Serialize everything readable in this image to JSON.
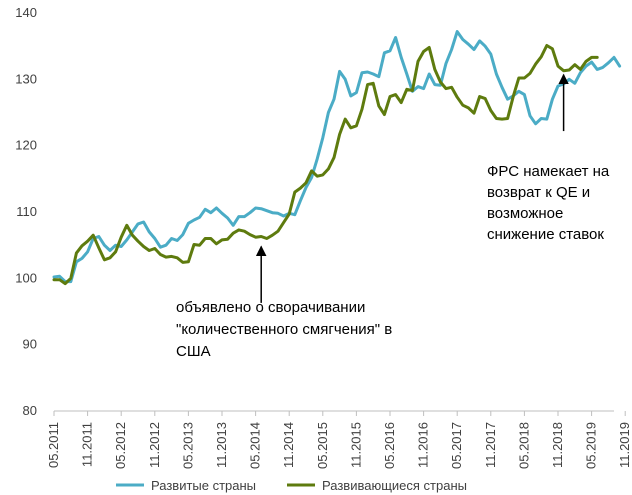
{
  "chart_data": {
    "type": "line",
    "ylim": [
      80,
      140
    ],
    "yticks": [
      80,
      90,
      100,
      110,
      120,
      130,
      140
    ],
    "xticks": [
      "05.2011",
      "11.2011",
      "05.2012",
      "11.2012",
      "05.2013",
      "11.2013",
      "05.2014",
      "11.2014",
      "05.2015",
      "11.2015",
      "05.2016",
      "11.2016",
      "05.2017",
      "11.2017",
      "05.2018",
      "11.2018",
      "05.2019",
      "11.2019"
    ],
    "grid": false,
    "legend_position": "bottom",
    "series": [
      {
        "name": "Развитые страны",
        "color": "#4BACC6",
        "values": [
          100.2,
          100.3,
          99.5,
          99.5,
          102.5,
          103,
          104,
          106,
          106.3,
          105,
          104.2,
          105,
          104.8,
          105.8,
          107,
          108.2,
          108.5,
          107,
          106,
          104.7,
          105,
          106,
          105.7,
          106.6,
          108.3,
          108.8,
          109.2,
          110.4,
          109.9,
          110.6,
          109.8,
          109.1,
          108,
          109.3,
          109.3,
          109.9,
          110.6,
          110.5,
          110.2,
          109.9,
          109.8,
          109.4,
          109.8,
          109.6,
          111.7,
          113.7,
          115.2,
          118,
          121.2,
          125,
          127,
          131.2,
          130,
          127.5,
          128,
          131,
          131.1,
          130.8,
          130.4,
          134,
          134.3,
          136.3,
          133.3,
          130.8,
          128.2,
          128.9,
          128.6,
          130.8,
          129.2,
          129.1,
          132.4,
          134.5,
          137.2,
          136,
          135.3,
          134.5,
          135.8,
          135,
          133.8,
          130.8,
          128.8,
          127,
          127.5,
          128.2,
          127.7,
          124.5,
          123.3,
          124.1,
          124,
          127,
          129,
          129.3,
          130,
          129.4,
          131,
          132,
          132.6,
          131.5,
          131.8,
          132.5,
          133.3,
          132
        ]
      },
      {
        "name": "Развивающиеся страны",
        "color": "#5E7B0E",
        "values": [
          99.8,
          99.8,
          99.2,
          100,
          103.8,
          104.9,
          105.6,
          106.5,
          104.6,
          102.8,
          103.1,
          104,
          106.2,
          108,
          106.5,
          105.6,
          104.8,
          104.2,
          104.5,
          103.6,
          103.2,
          103.3,
          103.1,
          102.4,
          102.5,
          105.1,
          105,
          106,
          106,
          105.2,
          105.8,
          105.9,
          106.8,
          107.3,
          107.1,
          106.6,
          106.2,
          106.3,
          106,
          106.5,
          107.1,
          108.4,
          109.7,
          113,
          113.6,
          114.4,
          116.2,
          115.4,
          115.6,
          116.5,
          118.2,
          121.7,
          124,
          122.7,
          123,
          125.5,
          129.2,
          129.4,
          126,
          124.7,
          127.4,
          127.7,
          126.5,
          128.5,
          128.3,
          132.7,
          134.2,
          134.8,
          131.5,
          129.6,
          128.6,
          128.8,
          127.3,
          126.1,
          125.7,
          124.9,
          127.4,
          127.1,
          125.3,
          124.1,
          124,
          124.1,
          127.4,
          130.2,
          130.2,
          130.9,
          132.3,
          133.4,
          135.1,
          134.6,
          132,
          131.3,
          131.4,
          132.2,
          131.5,
          132.7,
          133.3,
          133.3
        ]
      }
    ],
    "annotations": [
      {
        "lines": [
          "объявлено о сворачивании",
          "\"количественного смягчения\" в",
          "США"
        ],
        "arrow_x_index": 37,
        "arrow_from_y": 96.3,
        "arrow_to_y": 104.8
      },
      {
        "lines": [
          "ФРС намекает на",
          "возврат к QE и",
          "возможное",
          "снижение ставок"
        ],
        "arrow_x_index": 91,
        "arrow_from_y": 122.2,
        "arrow_to_y": 130.7
      }
    ]
  }
}
